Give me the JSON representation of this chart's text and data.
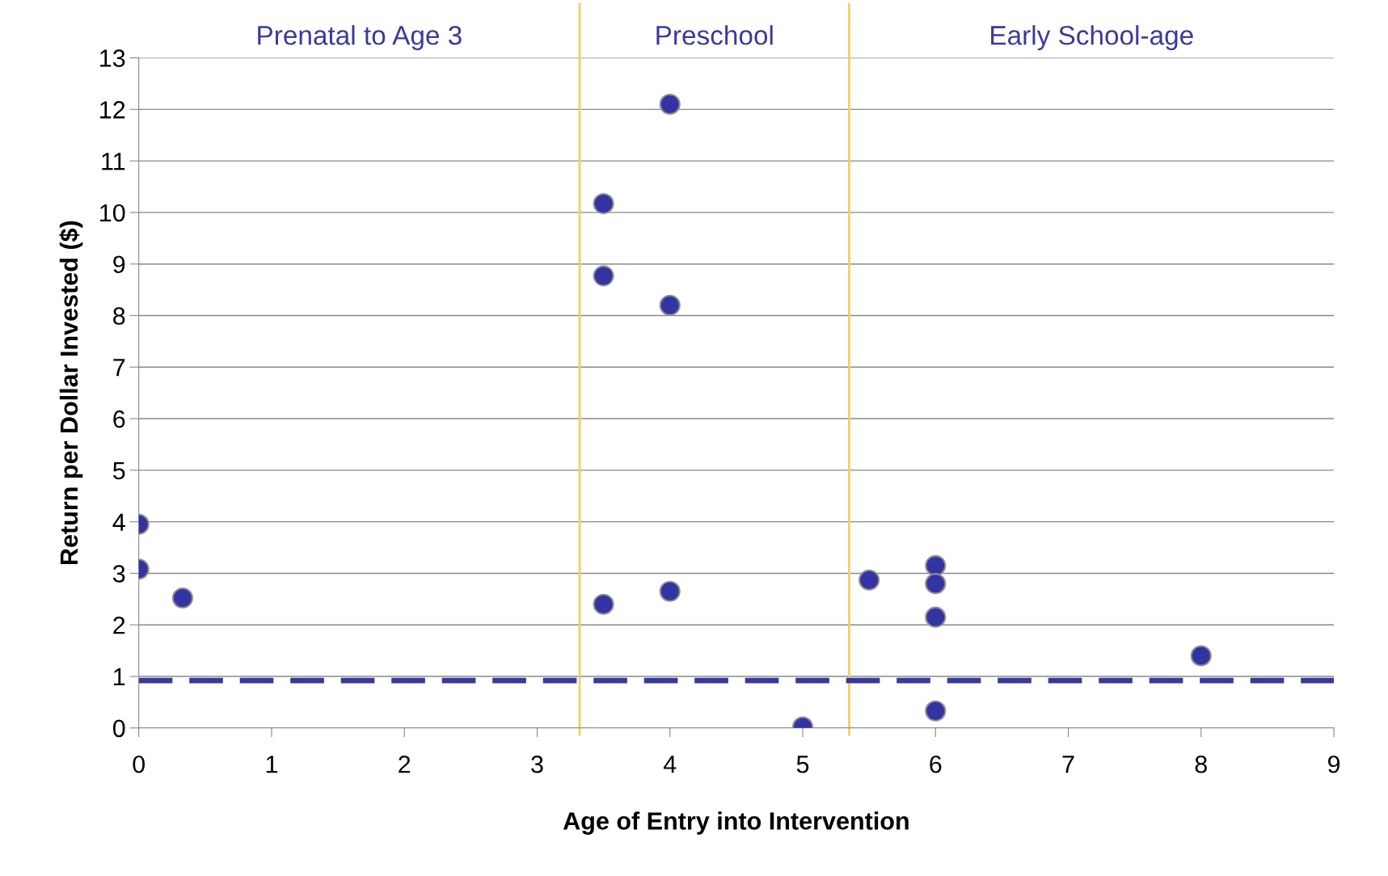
{
  "chart_data": {
    "type": "scatter",
    "xlabel": "Age of Entry into Intervention",
    "ylabel": "Return per Dollar Invested ($)",
    "series": [
      {
        "color": "#3333a3",
        "x": [
          0,
          0,
          0.33,
          3.5,
          3.5,
          3.5,
          4,
          4,
          4,
          5,
          5.5,
          6,
          6,
          6,
          6,
          8
        ],
        "values": [
          3.95,
          3.08,
          2.52,
          10.17,
          8.77,
          2.4,
          12.1,
          8.2,
          2.65,
          0.02,
          2.87,
          3.15,
          2.8,
          2.15,
          0.33,
          1.4
        ]
      }
    ],
    "marker": "circle",
    "xlim": [
      0,
      9
    ],
    "ylim": [
      0,
      13
    ],
    "xticks": [
      0,
      1,
      2,
      3,
      4,
      5,
      6,
      7,
      8,
      9
    ],
    "yticks": [
      0,
      1,
      2,
      3,
      4,
      5,
      6,
      7,
      8,
      9,
      10,
      11,
      12,
      13
    ],
    "grid": "y",
    "ref_lines": [
      {
        "axis": "y",
        "value": 0.92,
        "color": "#3a3a9a",
        "line_style": "dashed"
      },
      {
        "axis": "x",
        "value": 3.32,
        "color": "#f0d060",
        "line_style": "solid"
      },
      {
        "axis": "x",
        "value": 5.35,
        "color": "#f0d060",
        "line_style": "solid"
      }
    ],
    "annotations": [
      "Prenatal to Age 3",
      "Preschool",
      "Early School-age"
    ]
  }
}
